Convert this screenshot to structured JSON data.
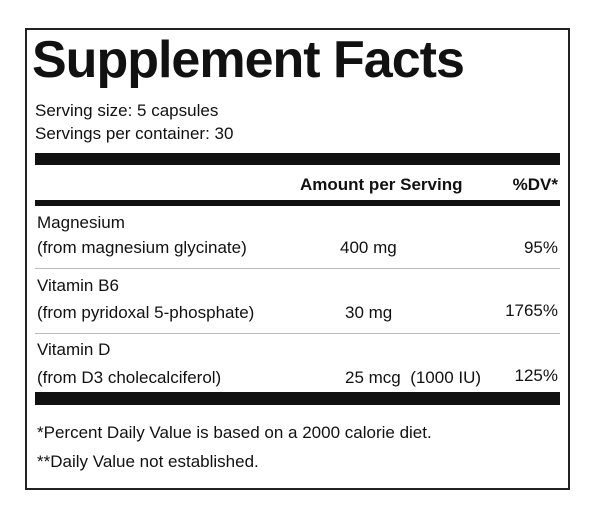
{
  "header": {
    "title": "Supplement Facts"
  },
  "serving": {
    "size": "Serving size: 5 capsules",
    "per_container": "Servings per container: 30"
  },
  "table": {
    "columns": [
      "Amount per Serving",
      "%DV*"
    ],
    "rows": [
      {
        "name": "Magnesium",
        "source": "(from magnesium glycinate)",
        "amount": "400 mg",
        "dv": "95%"
      },
      {
        "name": "Vitamin B6",
        "source": "(from pyridoxal 5-phosphate)",
        "amount": "30 mg",
        "dv": "1765%"
      },
      {
        "name": "Vitamin D",
        "source": "(from D3 cholecalciferol)",
        "amount": "25 mcg  (1000 IU)",
        "dv": "125%"
      }
    ]
  },
  "footnotes": [
    "*Percent Daily Value is based on a 2000 calorie diet.",
    "**Daily Value not established."
  ]
}
